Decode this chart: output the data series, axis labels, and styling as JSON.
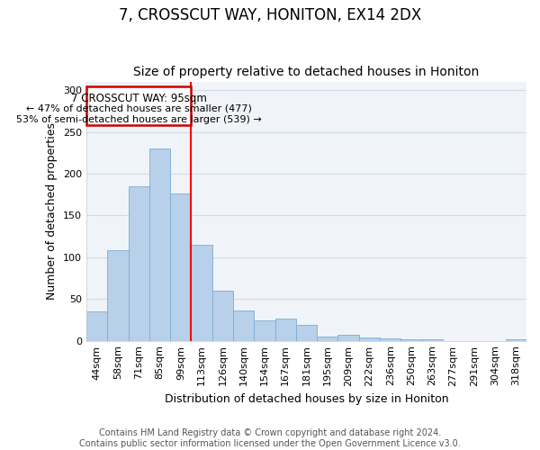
{
  "title": "7, CROSSCUT WAY, HONITON, EX14 2DX",
  "subtitle": "Size of property relative to detached houses in Honiton",
  "xlabel": "Distribution of detached houses by size in Honiton",
  "ylabel": "Number of detached properties",
  "categories": [
    "44sqm",
    "58sqm",
    "71sqm",
    "85sqm",
    "99sqm",
    "113sqm",
    "126sqm",
    "140sqm",
    "154sqm",
    "167sqm",
    "181sqm",
    "195sqm",
    "209sqm",
    "222sqm",
    "236sqm",
    "250sqm",
    "263sqm",
    "277sqm",
    "291sqm",
    "304sqm",
    "318sqm"
  ],
  "values": [
    35,
    108,
    185,
    230,
    176,
    115,
    60,
    36,
    24,
    27,
    19,
    5,
    7,
    4,
    3,
    2,
    2,
    0,
    0,
    0,
    2
  ],
  "bar_color": "#b8d0ea",
  "bar_edge_color": "#7aadd4",
  "property_label": "7 CROSSCUT WAY: 95sqm",
  "annotation_line1": "← 47% of detached houses are smaller (477)",
  "annotation_line2": "53% of semi-detached houses are larger (539) →",
  "annotation_box_color": "#ffffff",
  "annotation_box_edge_color": "#cc0000",
  "red_line_bar_index": 4,
  "footer1": "Contains HM Land Registry data © Crown copyright and database right 2024.",
  "footer2": "Contains public sector information licensed under the Open Government Licence v3.0.",
  "ylim": [
    0,
    310
  ],
  "yticks": [
    0,
    50,
    100,
    150,
    200,
    250,
    300
  ],
  "title_fontsize": 12,
  "subtitle_fontsize": 10,
  "axis_label_fontsize": 9,
  "tick_fontsize": 8,
  "footer_fontsize": 7,
  "grid_color": "#d0dce8",
  "background_color": "#f0f4f8"
}
